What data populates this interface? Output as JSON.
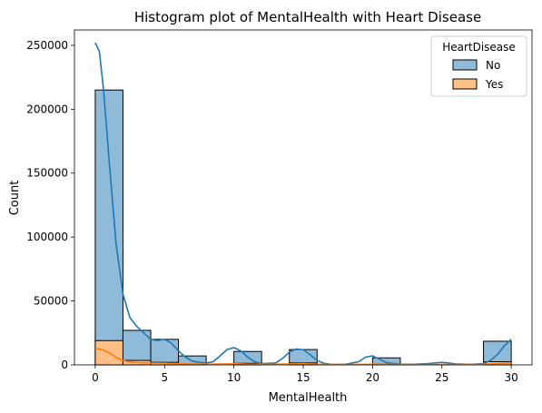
{
  "chart_data": {
    "type": "histogram",
    "title": "Histogram plot of MentalHealth with Heart Disease",
    "xlabel": "MentalHealth",
    "ylabel": "Count",
    "xlim": [
      -1.5,
      31.5
    ],
    "ylim": [
      0,
      262000
    ],
    "x_ticks": [
      0,
      5,
      10,
      15,
      20,
      25,
      30
    ],
    "y_ticks": [
      0,
      50000,
      100000,
      150000,
      200000,
      250000
    ],
    "y_tick_labels": [
      "0",
      "50000",
      "100000",
      "150000",
      "200000",
      "250000"
    ],
    "legend": {
      "title": "HeartDisease",
      "position": "top-right"
    },
    "bin_edges": [
      0,
      2,
      4,
      6,
      8,
      10,
      12,
      14,
      16,
      18,
      20,
      22,
      24,
      26,
      28,
      30
    ],
    "series": [
      {
        "name": "No",
        "color": "#1f77b4",
        "fill": "#8fbbd9",
        "counts": [
          215000,
          27000,
          20000,
          7000,
          0,
          10500,
          0,
          12000,
          0,
          0,
          5500,
          0,
          0,
          0,
          18500
        ],
        "kde": [
          [
            0,
            252000
          ],
          [
            0.3,
            245000
          ],
          [
            0.6,
            215000
          ],
          [
            1,
            160000
          ],
          [
            1.5,
            95000
          ],
          [
            2,
            55000
          ],
          [
            2.5,
            37000
          ],
          [
            3,
            30000
          ],
          [
            3.5,
            25000
          ],
          [
            4,
            20000
          ],
          [
            4.5,
            19000
          ],
          [
            5,
            20000
          ],
          [
            5.5,
            17000
          ],
          [
            6,
            11000
          ],
          [
            6.5,
            6000
          ],
          [
            7,
            3000
          ],
          [
            7.5,
            2000
          ],
          [
            8,
            1500
          ],
          [
            8.5,
            2500
          ],
          [
            9,
            7000
          ],
          [
            9.5,
            12000
          ],
          [
            10,
            13500
          ],
          [
            10.5,
            11000
          ],
          [
            11,
            6000
          ],
          [
            11.5,
            2500
          ],
          [
            12,
            1000
          ],
          [
            13,
            1500
          ],
          [
            13.5,
            5000
          ],
          [
            14,
            10000
          ],
          [
            14.5,
            12500
          ],
          [
            15,
            12000
          ],
          [
            15.5,
            8000
          ],
          [
            16,
            3500
          ],
          [
            16.5,
            1200
          ],
          [
            17,
            500
          ],
          [
            18,
            400
          ],
          [
            19,
            2500
          ],
          [
            19.5,
            6000
          ],
          [
            20,
            7000
          ],
          [
            20.5,
            4500
          ],
          [
            21,
            1800
          ],
          [
            22,
            500
          ],
          [
            23,
            500
          ],
          [
            24,
            1000
          ],
          [
            25,
            2000
          ],
          [
            25.5,
            1500
          ],
          [
            26,
            800
          ],
          [
            27,
            400
          ],
          [
            28,
            1000
          ],
          [
            28.5,
            3500
          ],
          [
            29,
            8000
          ],
          [
            29.5,
            15000
          ],
          [
            30,
            20000
          ]
        ]
      },
      {
        "name": "Yes",
        "color": "#ff7f0e",
        "fill": "#ffbf87",
        "counts": [
          19000,
          3500,
          2000,
          500,
          0,
          1200,
          0,
          1500,
          0,
          0,
          700,
          0,
          0,
          0,
          2500
        ],
        "kde": [
          [
            0,
            13000
          ],
          [
            0.5,
            12000
          ],
          [
            1,
            9500
          ],
          [
            1.5,
            6000
          ],
          [
            2,
            3500
          ],
          [
            2.5,
            2200
          ],
          [
            3,
            1800
          ],
          [
            4,
            1400
          ],
          [
            5,
            1400
          ],
          [
            6,
            900
          ],
          [
            8,
            500
          ],
          [
            10,
            900
          ],
          [
            11,
            500
          ],
          [
            13,
            500
          ],
          [
            15,
            900
          ],
          [
            16,
            500
          ],
          [
            18,
            300
          ],
          [
            20,
            500
          ],
          [
            22,
            300
          ],
          [
            25,
            300
          ],
          [
            28,
            500
          ],
          [
            29,
            900
          ],
          [
            30,
            1400
          ]
        ]
      }
    ]
  }
}
